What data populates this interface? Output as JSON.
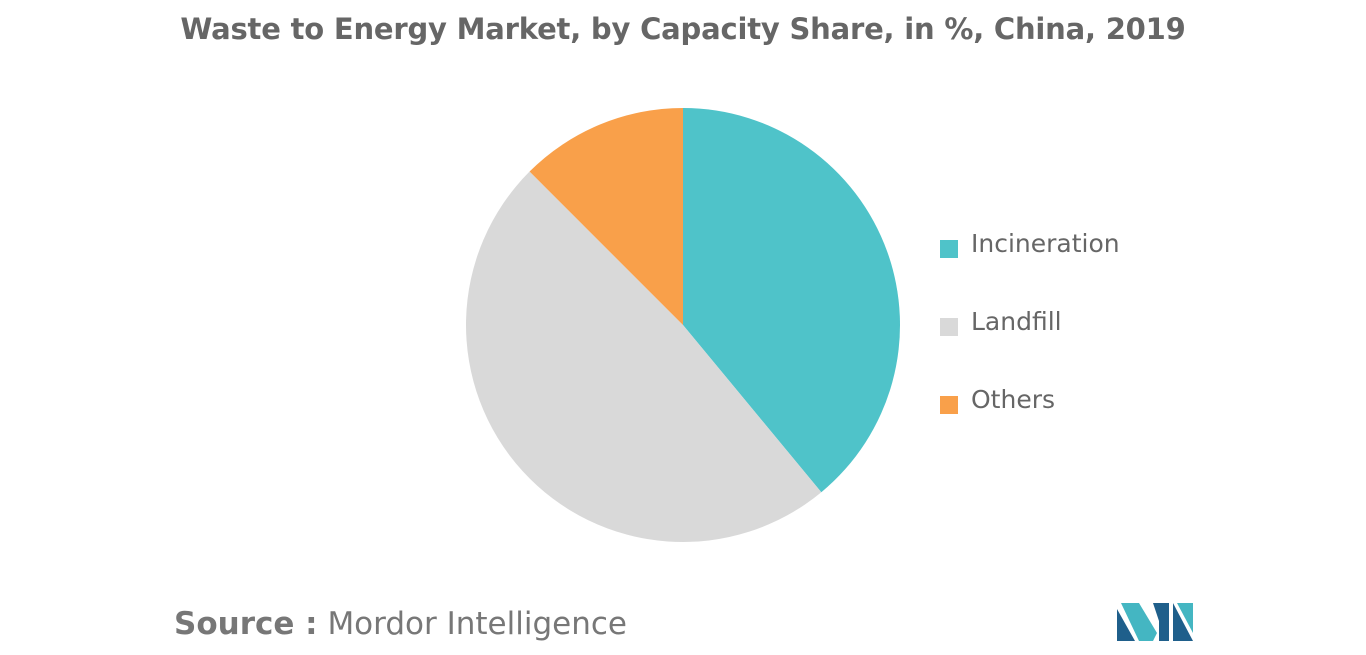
{
  "chart_data": {
    "type": "pie",
    "title": "Waste to Energy Market, by Capacity Share, in %, China, 2019",
    "slices": [
      {
        "label": "Incineration",
        "value": 39,
        "color": "#4FC3C9"
      },
      {
        "label": "Landfill",
        "value": 48.5,
        "color": "#D9D9D9"
      },
      {
        "label": "Others",
        "value": 12.5,
        "color": "#F9A04A"
      }
    ],
    "legend_position": "right"
  },
  "source": {
    "label": "Source :",
    "text": "Mordor Intelligence"
  },
  "logo": {
    "colors": [
      "#1F5F8B",
      "#44B6C2"
    ]
  }
}
